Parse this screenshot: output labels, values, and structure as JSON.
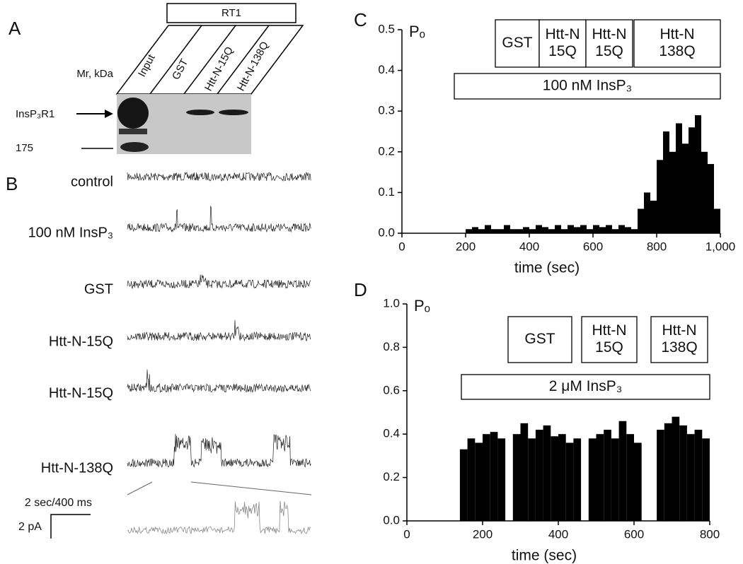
{
  "panels": {
    "a": "A",
    "b": "B",
    "c": "C",
    "d": "D"
  },
  "blot": {
    "group": "RT1",
    "lanes": [
      "Input",
      "GST",
      "Htt-N-15Q",
      "Htt-N-138Q"
    ],
    "mr_label": "Mr, kDa",
    "band_label": "InsP₃R1",
    "marker": "175"
  },
  "traces": {
    "labels": [
      "control",
      "100 nM InsP₃",
      "GST",
      "Htt-N-15Q",
      "Htt-N-15Q",
      "Htt-N-138Q"
    ],
    "time_scale": "2 sec/400 ms",
    "current_scale": "2 pA"
  },
  "chart_data": [
    {
      "type": "histogram",
      "ylabel": "Pₒ",
      "xlabel": "time (sec)",
      "color": "#000000",
      "bins": [
        0,
        20,
        40,
        60,
        80,
        100,
        120,
        140,
        160,
        180,
        200,
        220,
        240,
        260,
        280,
        300,
        320,
        340,
        360,
        380,
        400,
        420,
        440,
        460,
        480,
        500,
        520,
        540,
        560,
        580,
        600,
        620,
        640,
        660,
        680,
        700,
        720,
        740,
        760,
        780,
        800,
        820,
        840,
        860,
        880,
        900,
        920,
        940,
        960,
        980,
        1000
      ],
      "values": [
        0,
        0,
        0,
        0,
        0,
        0,
        0,
        0,
        0,
        0,
        0.01,
        0.015,
        0.01,
        0.02,
        0.01,
        0.01,
        0.02,
        0.01,
        0.01,
        0.015,
        0.01,
        0.02,
        0.015,
        0.01,
        0.02,
        0.01,
        0.02,
        0.015,
        0.02,
        0.01,
        0.02,
        0.015,
        0.02,
        0.01,
        0.02,
        0.015,
        0.01,
        0.06,
        0.1,
        0.08,
        0.18,
        0.25,
        0.2,
        0.27,
        0.22,
        0.26,
        0.29,
        0.2,
        0.17,
        0.06
      ],
      "xlim": [
        0,
        1000
      ],
      "ylim": [
        0,
        0.5
      ],
      "xticks": [
        0,
        200,
        400,
        600,
        800,
        {
          "value": 1000,
          "label": "1,000"
        }
      ],
      "yticks": [
        {
          "value": 0,
          "label": "0.0"
        },
        0.1,
        0.2,
        0.3,
        0.4,
        0.5
      ],
      "annotations": [
        [
          "GST"
        ],
        [
          "Htt-N",
          "15Q"
        ],
        [
          "Htt-N",
          "15Q"
        ],
        [
          "Htt-N",
          "138Q"
        ],
        [
          "100 nM InsP₃"
        ]
      ]
    },
    {
      "type": "histogram",
      "ylabel": "Pₒ",
      "xlabel": "time (sec)",
      "color": "#000000",
      "bins": [
        0,
        20,
        40,
        60,
        80,
        100,
        120,
        140,
        160,
        180,
        200,
        220,
        240,
        260,
        280,
        300,
        320,
        340,
        360,
        380,
        400,
        420,
        440,
        460,
        480,
        500,
        520,
        540,
        560,
        580,
        600,
        620,
        640,
        660,
        680,
        700,
        720,
        740,
        760,
        780,
        800
      ],
      "values": [
        0,
        0,
        0,
        0,
        0,
        0,
        0,
        0.33,
        0.38,
        0.36,
        0.4,
        0.41,
        0.38,
        0,
        0.4,
        0.45,
        0.38,
        0.42,
        0.44,
        0.39,
        0.4,
        0.36,
        0.38,
        0,
        0.38,
        0.4,
        0.42,
        0.38,
        0.46,
        0.4,
        0.36,
        0,
        0,
        0.42,
        0.45,
        0.48,
        0.44,
        0.4,
        0.42,
        0.38
      ],
      "xlim": [
        0,
        800
      ],
      "ylim": [
        0,
        1
      ],
      "xticks": [
        0,
        200,
        400,
        600,
        800
      ],
      "yticks": [
        {
          "value": 0,
          "label": "0.0"
        },
        0.2,
        0.4,
        0.6,
        0.8,
        {
          "value": 1,
          "label": "1.0"
        }
      ],
      "annotations": [
        [
          "GST"
        ],
        [
          "Htt-N",
          "15Q"
        ],
        [
          "Htt-N",
          "138Q"
        ],
        [
          "2 μM InsP₃"
        ]
      ]
    }
  ]
}
